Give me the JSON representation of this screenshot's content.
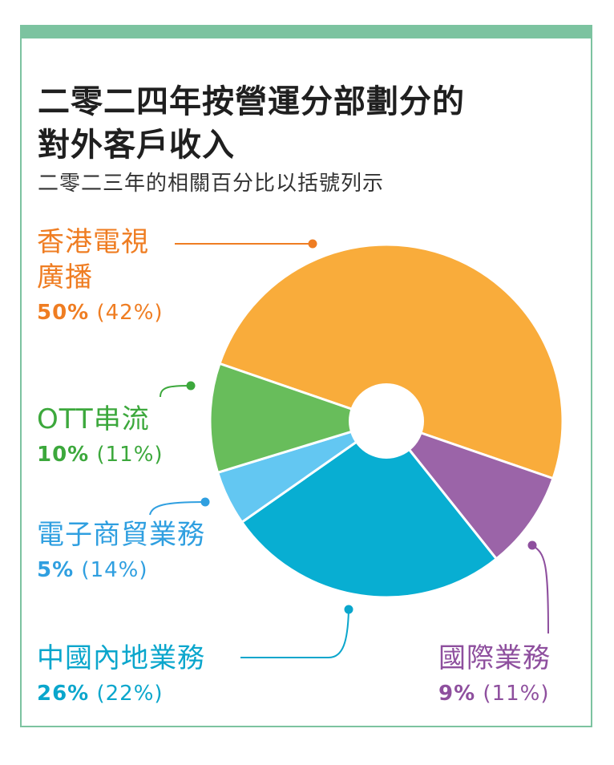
{
  "title_line1": "二零二四年按營運分部劃分的",
  "title_line2": "對外客戶收入",
  "subtitle": "二零二三年的相關百分比以括號列示",
  "chart_data": {
    "type": "pie",
    "title": "二零二四年按營運分部劃分的對外客戶收入",
    "subtitle": "二零二三年的相關百分比以括號列示",
    "slices": [
      {
        "name": "香港電視廣播",
        "value": 50,
        "previous": 42,
        "value_label": "50%",
        "previous_label": "(42%)",
        "color": "#f9ac3b",
        "text_color": "#ef7d22"
      },
      {
        "name": "國際業務",
        "value": 9,
        "previous": 11,
        "value_label": "9%",
        "previous_label": "(11%)",
        "color": "#9b64a8",
        "text_color": "#8e4f9e"
      },
      {
        "name": "中國內地業務",
        "value": 26,
        "previous": 22,
        "value_label": "26%",
        "previous_label": "(22%)",
        "color": "#08aed2",
        "text_color": "#0aa6cc"
      },
      {
        "name": "電子商貿業務",
        "value": 5,
        "previous": 14,
        "value_label": "5%",
        "previous_label": "(14%)",
        "color": "#63c7f2",
        "text_color": "#2f9fe0"
      },
      {
        "name": "OTT串流",
        "value": 10,
        "previous": 11,
        "value_label": "10%",
        "previous_label": "(11%)",
        "color": "#68bd5b",
        "text_color": "#3ca83c"
      }
    ]
  }
}
